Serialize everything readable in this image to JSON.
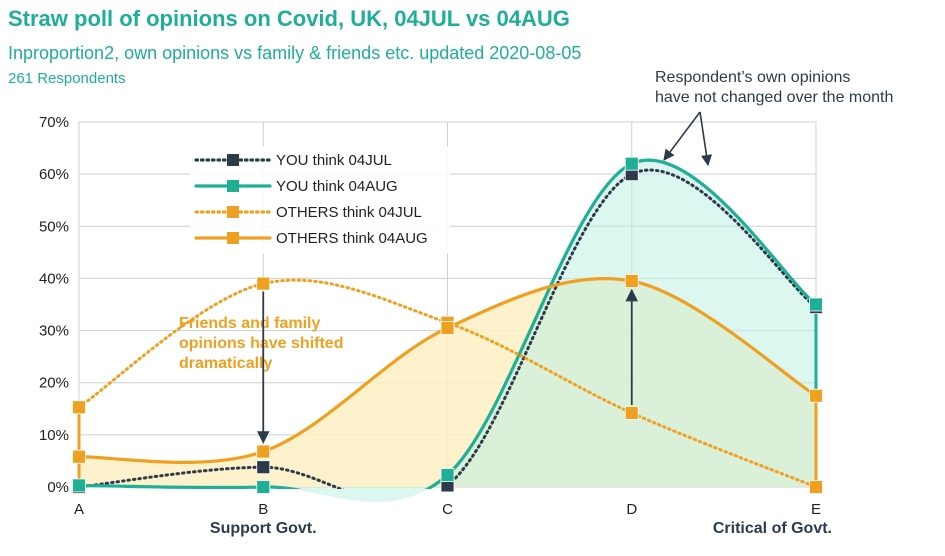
{
  "header": {
    "title": "Straw poll of opinions on Covid, UK, 04JUL vs 04AUG",
    "subtitle": "Inproportion2, own opinions vs family & friends etc. updated 2020-08-05",
    "respondents": "261 Respondents"
  },
  "colors": {
    "you": "#1fae96",
    "you_jul": "#2d3a4a",
    "others": "#f0a020",
    "annotation_orange": "#f0a020",
    "annotation_dark": "#2d3a4a",
    "grid": "#cfcfcf"
  },
  "chart_data": {
    "type": "line",
    "categories": [
      "A",
      "B",
      "C",
      "D",
      "E"
    ],
    "ylim": [
      0,
      70
    ],
    "ytick_labels": [
      "0%",
      "10%",
      "20%",
      "30%",
      "40%",
      "50%",
      "60%",
      "70%"
    ],
    "yticks": [
      0,
      10,
      20,
      30,
      40,
      50,
      60,
      70
    ],
    "grid": true,
    "legend_position": "top-left",
    "axis_group_labels": [
      {
        "text": "Support Govt.",
        "near": "B"
      },
      {
        "text": "Critical of Govt.",
        "near": "E"
      }
    ],
    "series": [
      {
        "name": "YOU think 04JUL",
        "values": [
          0,
          3.8,
          0.3,
          60,
          34.5
        ],
        "style": "dotted",
        "color": "#2d3a4a",
        "marker_color": "#2d3a4a"
      },
      {
        "name": "YOU think 04AUG",
        "values": [
          0.3,
          0,
          2.3,
          62,
          35
        ],
        "style": "solid",
        "color": "#1fae96",
        "marker_color": "#1fae96"
      },
      {
        "name": "OTHERS think 04JUL",
        "values": [
          15.3,
          39,
          31.5,
          14.2,
          0
        ],
        "style": "dotted",
        "color": "#f0a020",
        "marker_color": "#f0a020"
      },
      {
        "name": "OTHERS think 04AUG",
        "values": [
          5.8,
          6.8,
          30.5,
          39.5,
          17.5
        ],
        "style": "solid",
        "color": "#f0a020",
        "marker_color": "#f0a020"
      }
    ],
    "annotations": [
      {
        "lines": [
          "Respondent’s own opinions",
          "have not changed over the month"
        ]
      },
      {
        "lines": [
          "Friends and family",
          "opinions have shifted",
          "dramatically"
        ]
      }
    ]
  }
}
